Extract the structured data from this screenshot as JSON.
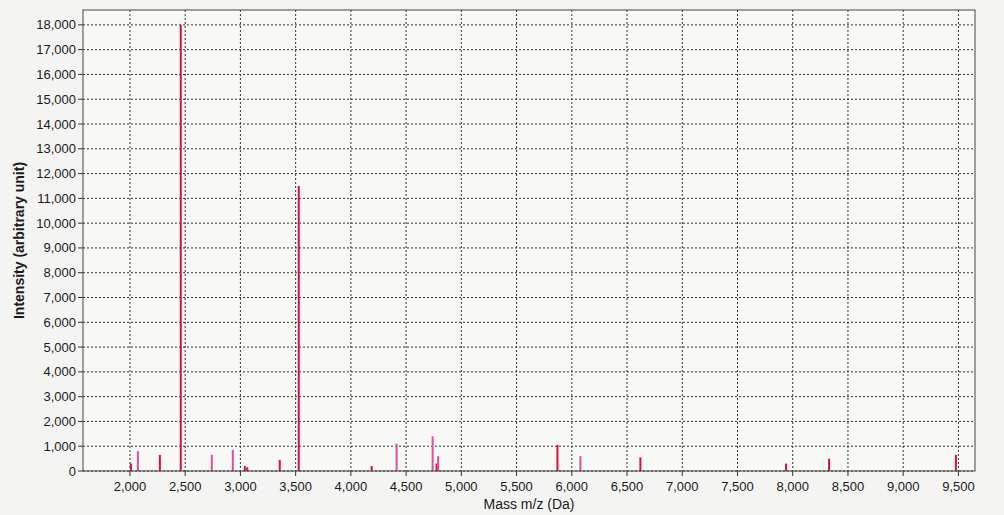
{
  "chart_data": {
    "type": "bar",
    "x_label": "Mass m/z (Da)",
    "y_label": "Intensity (arbitrary unit)",
    "x": [
      2009,
      2072,
      2271,
      2460,
      2741,
      2931,
      3040,
      3062,
      3356,
      3528,
      4188,
      4414,
      4740,
      4776,
      4790,
      5870,
      6078,
      6621,
      7940,
      8329,
      9477
    ],
    "values": [
      300,
      800,
      650,
      18000,
      650,
      850,
      200,
      150,
      450,
      11500,
      200,
      1100,
      1400,
      300,
      600,
      1050,
      600,
      550,
      300,
      500,
      650
    ],
    "colors": [
      "#d4113c",
      "#e0509a",
      "#d4113c",
      "#d4113c",
      "#e0509a",
      "#e0509a",
      "#d4113c",
      "#d4113c",
      "#d4113c",
      "#d4113c",
      "#d4113c",
      "#e0509a",
      "#e0509a",
      "#d4113c",
      "#e0509a",
      "#d4113c",
      "#e0509a",
      "#d4113c",
      "#d4113c",
      "#d4113c",
      "#d4113c"
    ],
    "xlim": [
      1575,
      9650
    ],
    "ylim": [
      0,
      18600
    ],
    "xticks": [
      {
        "value": 2000,
        "label": "2,000"
      },
      {
        "value": 2500,
        "label": "2,500"
      },
      {
        "value": 3000,
        "label": "3,000"
      },
      {
        "value": 3500,
        "label": "3,500"
      },
      {
        "value": 4000,
        "label": "4,000"
      },
      {
        "value": 4500,
        "label": "4,500"
      },
      {
        "value": 5000,
        "label": "5,000"
      },
      {
        "value": 5500,
        "label": "5,500"
      },
      {
        "value": 6000,
        "label": "6,000"
      },
      {
        "value": 6500,
        "label": "6,500"
      },
      {
        "value": 7000,
        "label": "7,000"
      },
      {
        "value": 7500,
        "label": "7,500"
      },
      {
        "value": 8000,
        "label": "8,000"
      },
      {
        "value": 8500,
        "label": "8,500"
      },
      {
        "value": 9000,
        "label": "9,000"
      },
      {
        "value": 9500,
        "label": "9,500"
      }
    ],
    "yticks": [
      0,
      {
        "value": 1000,
        "label": "1,000"
      },
      {
        "value": 2000,
        "label": "2,000"
      },
      {
        "value": 3000,
        "label": "3,000"
      },
      {
        "value": 4000,
        "label": "4,000"
      },
      {
        "value": 5000,
        "label": "5,000"
      },
      {
        "value": 6000,
        "label": "6,000"
      },
      {
        "value": 7000,
        "label": "7,000"
      },
      {
        "value": 8000,
        "label": "8,000"
      },
      {
        "value": 9000,
        "label": "9,000"
      },
      {
        "value": 10000,
        "label": "10,000"
      },
      {
        "value": 11000,
        "label": "11,000"
      },
      {
        "value": 12000,
        "label": "12,000"
      },
      {
        "value": 13000,
        "label": "13,000"
      },
      {
        "value": 14000,
        "label": "14,000"
      },
      {
        "value": 15000,
        "label": "15,000"
      },
      {
        "value": 16000,
        "label": "16,000"
      },
      {
        "value": 17000,
        "label": "17,000"
      },
      {
        "value": 18000,
        "label": "18,000"
      }
    ],
    "grid": true
  }
}
